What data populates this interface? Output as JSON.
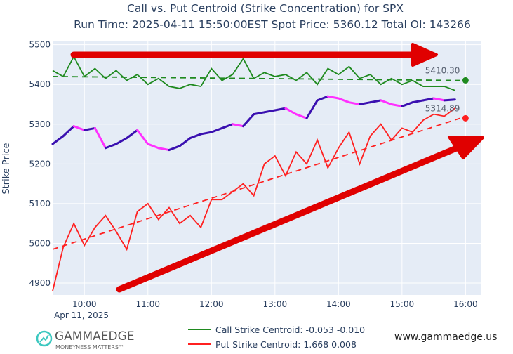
{
  "chart_data": {
    "type": "line",
    "title": "Call vs. Put Centroid (Strike Concentration) for SPX",
    "subtitle": "Run Time: 2025-04-11 15:50:00EST Spot Price: 5360.12 Total OI: 143266",
    "ylabel": "Strike Price",
    "xlabel": "",
    "date_label": "Apr 11, 2025",
    "ylim": [
      4870,
      5510
    ],
    "xlim": [
      "09:30",
      "16:15"
    ],
    "yticks": [
      "4900",
      "5000",
      "5100",
      "5200",
      "5300",
      "5400",
      "5500"
    ],
    "xticks": [
      "10:00",
      "11:00",
      "12:00",
      "13:00",
      "14:00",
      "15:00",
      "16:00"
    ],
    "grid": true,
    "legend_placement": "bottom-center",
    "x": [
      "09:30",
      "09:40",
      "09:50",
      "10:00",
      "10:10",
      "10:20",
      "10:30",
      "10:40",
      "10:50",
      "11:00",
      "11:10",
      "11:20",
      "11:30",
      "11:40",
      "11:50",
      "12:00",
      "12:10",
      "12:20",
      "12:30",
      "12:40",
      "12:50",
      "13:00",
      "13:10",
      "13:20",
      "13:30",
      "13:40",
      "13:50",
      "14:00",
      "14:10",
      "14:20",
      "14:30",
      "14:40",
      "14:50",
      "15:00",
      "15:10",
      "15:20",
      "15:30",
      "15:40",
      "15:50"
    ],
    "series": [
      {
        "name": "Call Strike Centroid: -0.053 -0.010",
        "color": "#1f8a1f",
        "values": [
          5435,
          5420,
          5470,
          5420,
          5440,
          5415,
          5435,
          5410,
          5425,
          5400,
          5415,
          5395,
          5390,
          5400,
          5395,
          5440,
          5410,
          5425,
          5465,
          5415,
          5430,
          5420,
          5425,
          5410,
          5430,
          5400,
          5440,
          5425,
          5445,
          5415,
          5425,
          5400,
          5415,
          5400,
          5410,
          5395,
          5395,
          5395,
          5385
        ],
        "trend": [
          5420,
          5410
        ]
      },
      {
        "name": "Put Strike Centroid: 1.668 0.008",
        "color": "#ff2020",
        "values": [
          4880,
          4990,
          5050,
          4995,
          5040,
          5070,
          5030,
          4985,
          5080,
          5100,
          5060,
          5090,
          5050,
          5070,
          5040,
          5110,
          5110,
          5130,
          5150,
          5120,
          5200,
          5220,
          5170,
          5230,
          5200,
          5260,
          5190,
          5240,
          5280,
          5200,
          5270,
          5300,
          5260,
          5290,
          5280,
          5310,
          5325,
          5320,
          5340
        ],
        "trend": [
          4985,
          5314.89
        ]
      },
      {
        "color_up": "#3a10b0",
        "color_down": "#ff30ff",
        "values": [
          5250,
          5270,
          5295,
          5285,
          5290,
          5240,
          5250,
          5265,
          5285,
          5250,
          5240,
          5235,
          5245,
          5265,
          5275,
          5280,
          5290,
          5300,
          5295,
          5325,
          5330,
          5335,
          5340,
          5325,
          5315,
          5360,
          5370,
          5365,
          5355,
          5350,
          5355,
          5360,
          5350,
          5345,
          5355,
          5360,
          5365,
          5360,
          5362
        ]
      }
    ],
    "end_markers": [
      {
        "x": "16:00",
        "y": 5410.3,
        "label": "5410.30",
        "color": "#1f8a1f"
      },
      {
        "x": "16:00",
        "y": 5314.89,
        "label": "5314.89",
        "color": "#ff2020"
      }
    ]
  },
  "footer": {
    "logo_text": "GAMMAEDGE",
    "logo_tagline": "MONEYNESS MATTERS™",
    "website": "www.gammaedge.us"
  },
  "colors": {
    "plot_bg": "#e5ecf6",
    "arrow": "#e00000"
  }
}
